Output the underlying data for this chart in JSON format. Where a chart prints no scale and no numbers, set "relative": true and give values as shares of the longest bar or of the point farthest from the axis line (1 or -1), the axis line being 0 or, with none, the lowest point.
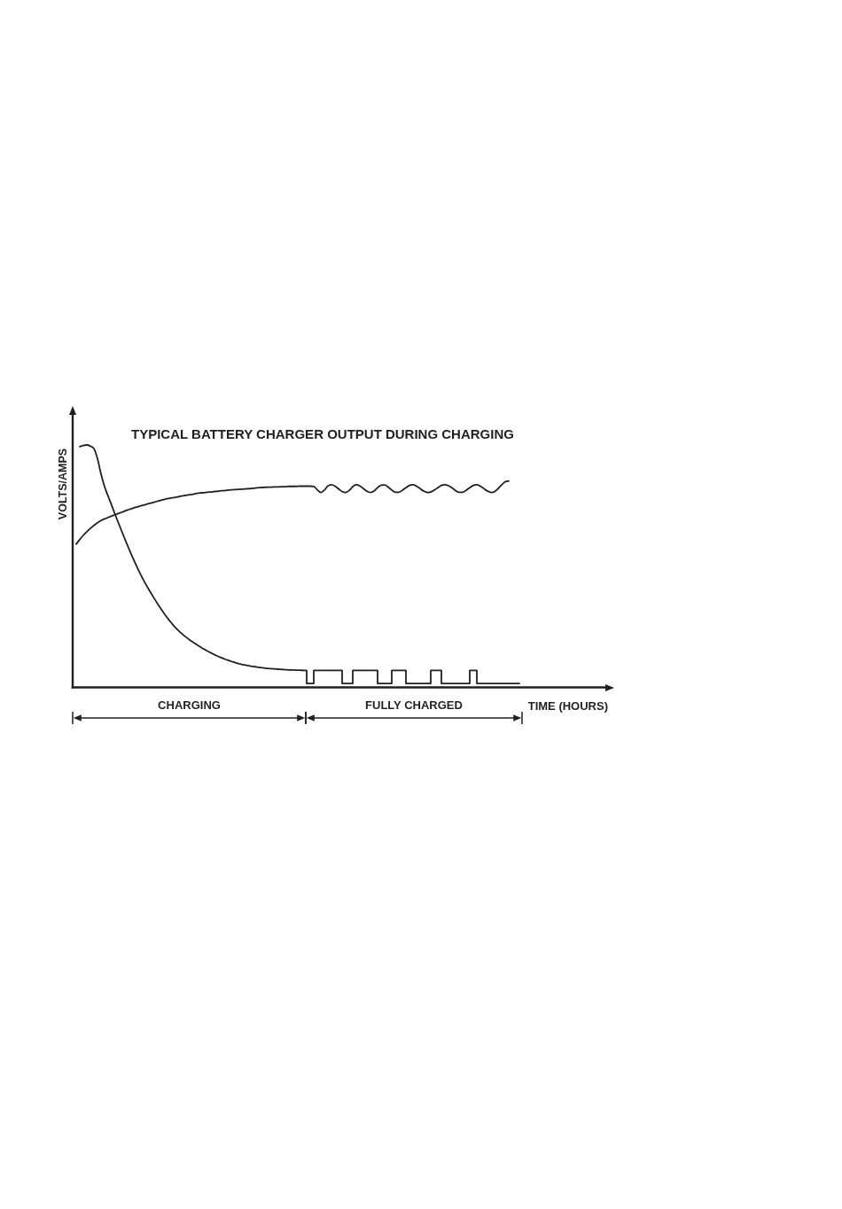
{
  "chart_data": {
    "type": "line",
    "title": "TYPICAL BATTERY CHARGER OUTPUT DURING CHARGING",
    "ylabel": "VOLTS/AMPS",
    "xlabel": "TIME (HOURS)",
    "relative": true,
    "marker": "none",
    "line_style": "solid",
    "categories": [
      null,
      null,
      null,
      null,
      null,
      null,
      null,
      null,
      null,
      null,
      null,
      null,
      null,
      null,
      null,
      null,
      null,
      null,
      null,
      null,
      null,
      null,
      null,
      null,
      null,
      null,
      null,
      null,
      null,
      null,
      null,
      null,
      null,
      null,
      null,
      null,
      null,
      null,
      null,
      null,
      null,
      null,
      null,
      null,
      null,
      null,
      null,
      null,
      null,
      null,
      null,
      null,
      null,
      null,
      null,
      null,
      null,
      null,
      null,
      null,
      null,
      null,
      null,
      null,
      null,
      null,
      null,
      null,
      null,
      null,
      null,
      null,
      null,
      null,
      null,
      null,
      null,
      null,
      null,
      null,
      null,
      null,
      null,
      null,
      null,
      null,
      null,
      null,
      null,
      null,
      null,
      null,
      null,
      null,
      null,
      null,
      null,
      null,
      null,
      null,
      null,
      null,
      null,
      null,
      null,
      null,
      null,
      null,
      null,
      null,
      null,
      null,
      null,
      null,
      null,
      null,
      null,
      null,
      null,
      null,
      null,
      null,
      null,
      null,
      null,
      null,
      null
    ],
    "series": [
      {
        "color": "#231f20",
        "values": [
          null,
          0.591,
          0.61,
          0.627,
          0.642,
          0.656,
          0.668,
          0.679,
          0.688,
          0.695,
          0.701,
          0.707,
          0.712,
          0.718,
          0.723,
          0.729,
          0.734,
          0.739,
          0.744,
          0.748,
          0.752,
          0.756,
          0.76,
          0.764,
          0.768,
          0.772,
          0.776,
          0.779,
          0.782,
          0.784,
          0.787,
          0.79,
          0.792,
          0.795,
          0.797,
          0.8,
          0.802,
          0.803,
          0.805,
          0.806,
          0.808,
          0.809,
          0.811,
          0.812,
          0.814,
          0.815,
          0.816,
          0.817,
          0.818,
          0.819,
          0.82,
          0.821,
          0.823,
          0.824,
          0.825,
          0.826,
          0.826,
          0.827,
          0.827,
          0.828,
          0.828,
          0.829,
          0.829,
          0.829,
          0.83,
          0.83,
          0.83,
          0.83,
          0.829,
          0.815,
          0.804,
          0.814,
          0.831,
          0.836,
          0.83,
          0.819,
          0.808,
          0.804,
          0.812,
          0.828,
          0.836,
          0.831,
          0.82,
          0.809,
          0.804,
          0.81,
          0.824,
          0.834,
          0.835,
          0.826,
          0.814,
          0.805,
          0.805,
          0.813,
          0.824,
          0.833,
          0.836,
          0.83,
          0.82,
          0.81,
          0.804,
          0.806,
          0.814,
          0.824,
          0.833,
          0.836,
          0.832,
          0.823,
          0.812,
          0.805,
          0.805,
          0.813,
          0.824,
          0.833,
          0.836,
          0.83,
          0.82,
          0.81,
          0.804,
          0.807,
          0.82,
          0.835,
          0.848,
          0.851,
          null,
          null,
          null
        ]
      },
      {
        "color": "#231f20",
        "values": [
          null,
          null,
          0.993,
          0.998,
          1,
          0.995,
          0.985,
          0.943,
          0.88,
          0.828,
          0.789,
          0.751,
          0.712,
          0.675,
          0.638,
          0.602,
          0.567,
          0.533,
          0.501,
          0.47,
          0.442,
          0.416,
          0.391,
          0.367,
          0.344,
          0.322,
          0.301,
          0.281,
          0.263,
          0.246,
          0.232,
          0.219,
          0.207,
          0.196,
          0.186,
          0.176,
          0.167,
          0.158,
          0.15,
          0.142,
          0.135,
          0.128,
          0.122,
          0.116,
          0.111,
          0.106,
          0.101,
          0.097,
          0.094,
          0.091,
          0.088,
          0.086,
          0.084,
          0.082,
          0.08,
          0.078,
          0.077,
          0.076,
          0.075,
          0.074,
          0.073,
          0.072,
          0.072,
          0.071,
          0.071,
          0.07,
          null,
          null,
          null,
          null,
          null,
          null,
          null,
          null,
          null,
          null,
          null,
          null,
          null,
          null,
          null,
          null,
          null,
          null,
          null,
          null,
          null,
          null,
          null,
          null,
          null,
          null,
          null,
          null,
          null,
          null,
          null,
          null,
          null,
          null,
          null,
          null,
          null,
          null,
          null,
          null,
          null,
          null,
          null,
          null,
          null,
          null,
          null,
          null,
          null,
          null,
          null,
          null,
          null,
          null,
          null,
          null,
          null,
          null,
          null,
          null,
          null
        ]
      },
      {
        "type": "step",
        "color": "#231f20",
        "values": [
          null,
          null,
          null,
          null,
          null,
          null,
          null,
          null,
          null,
          null,
          null,
          null,
          null,
          null,
          null,
          null,
          null,
          null,
          null,
          null,
          null,
          null,
          null,
          null,
          null,
          null,
          null,
          null,
          null,
          null,
          null,
          null,
          null,
          null,
          null,
          null,
          null,
          null,
          null,
          null,
          null,
          null,
          null,
          null,
          null,
          null,
          null,
          null,
          null,
          null,
          null,
          null,
          null,
          null,
          null,
          null,
          null,
          null,
          null,
          null,
          null,
          null,
          null,
          null,
          null,
          0.07,
          0.016,
          0.016,
          0.07,
          0.07,
          0.07,
          0.07,
          0.07,
          0.07,
          0.07,
          0.07,
          0.016,
          0.016,
          0.016,
          0.07,
          0.07,
          0.07,
          0.07,
          0.07,
          0.07,
          0.07,
          0.016,
          0.016,
          0.016,
          0.016,
          0.07,
          0.07,
          0.07,
          0.07,
          0.016,
          0.016,
          0.016,
          0.016,
          0.016,
          0.016,
          0.016,
          0.07,
          0.07,
          0.07,
          0.016,
          0.016,
          0.016,
          0.016,
          0.016,
          0.016,
          0.016,
          0.016,
          0.07,
          0.07,
          0.016,
          0.016,
          0.016,
          0.016,
          0.016,
          0.016,
          0.016,
          0.016,
          0.016,
          0.016,
          0.016,
          0.016,
          0.016
        ]
      }
    ],
    "annotations": [
      "CHARGING",
      "FULLY CHARGED"
    ]
  }
}
